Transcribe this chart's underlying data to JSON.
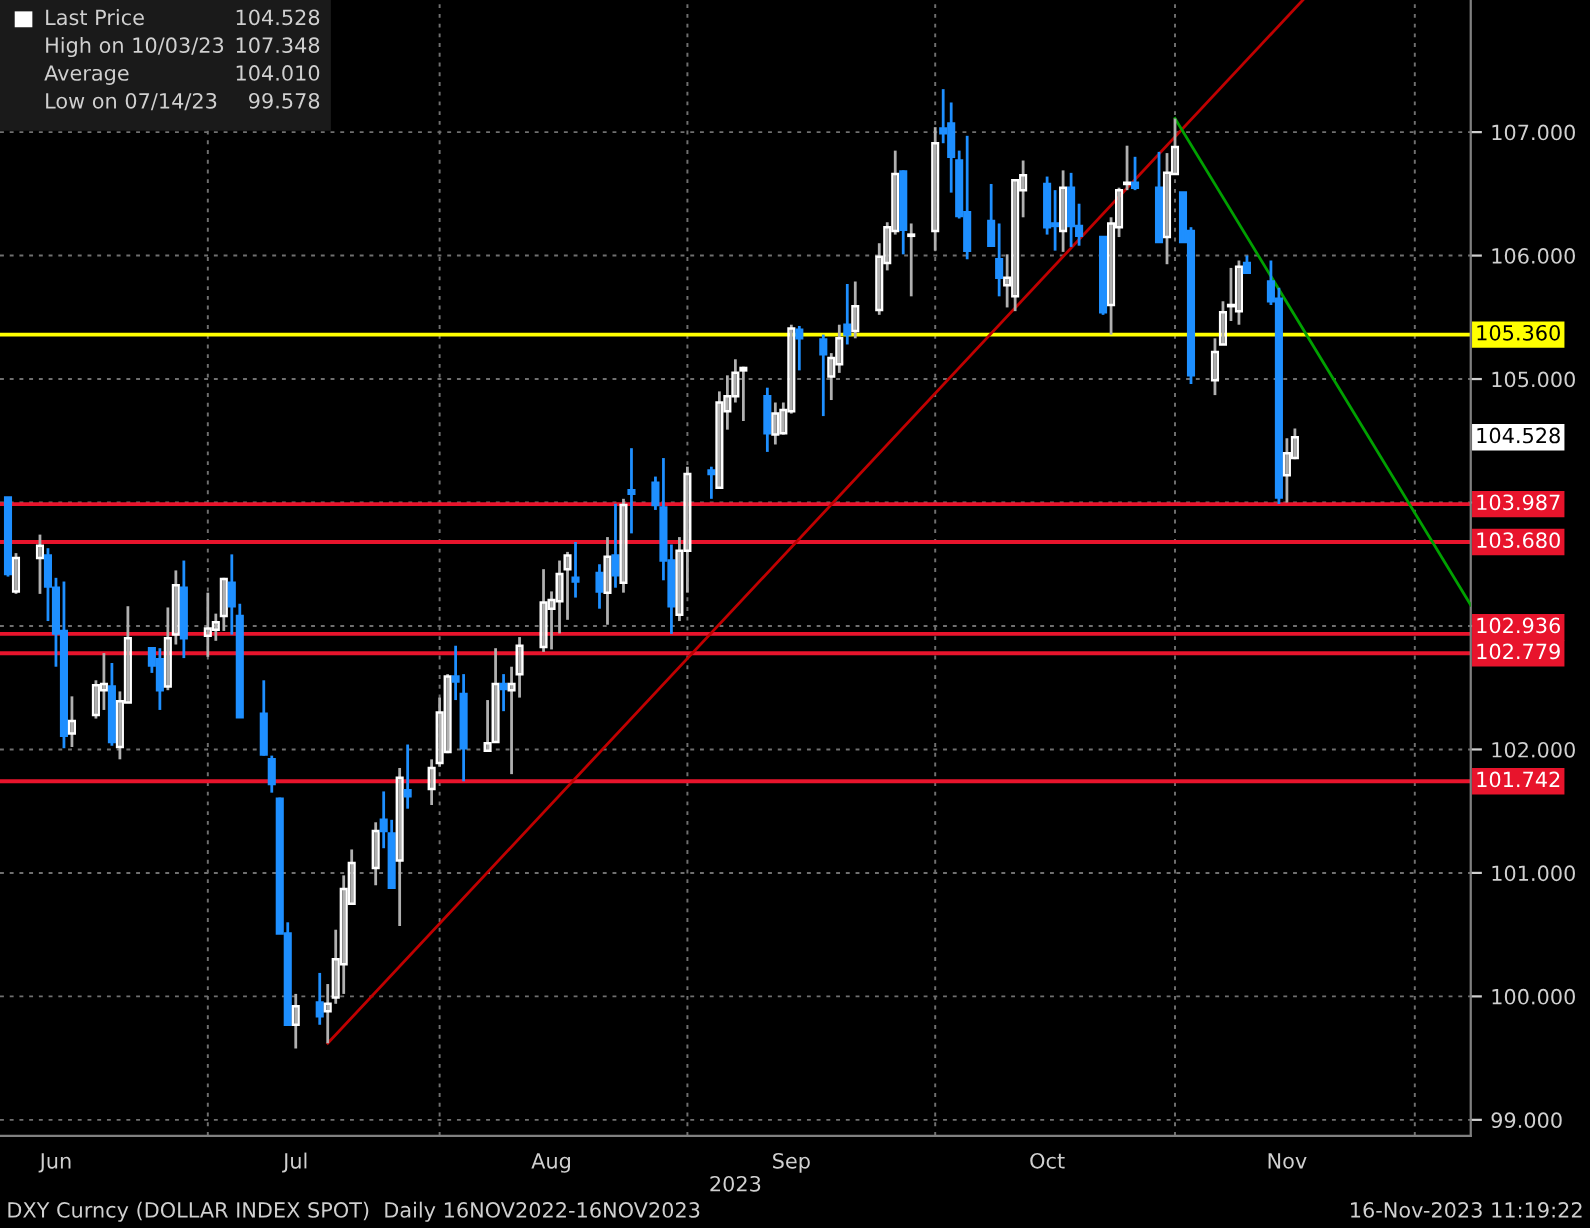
{
  "chart_data": {
    "type": "candlestick",
    "x": [
      "2023-06-08",
      "2023-06-09",
      "2023-06-12",
      "2023-06-13",
      "2023-06-14",
      "2023-06-15",
      "2023-06-16",
      "2023-06-19",
      "2023-06-20",
      "2023-06-21",
      "2023-06-22",
      "2023-06-23",
      "2023-06-26",
      "2023-06-27",
      "2023-06-28",
      "2023-06-29",
      "2023-06-30",
      "2023-07-03",
      "2023-07-04",
      "2023-07-05",
      "2023-07-06",
      "2023-07-07",
      "2023-07-10",
      "2023-07-11",
      "2023-07-12",
      "2023-07-13",
      "2023-07-14",
      "2023-07-17",
      "2023-07-18",
      "2023-07-19",
      "2023-07-20",
      "2023-07-21",
      "2023-07-24",
      "2023-07-25",
      "2023-07-26",
      "2023-07-27",
      "2023-07-28",
      "2023-07-31",
      "2023-08-01",
      "2023-08-02",
      "2023-08-03",
      "2023-08-04",
      "2023-08-07",
      "2023-08-08",
      "2023-08-09",
      "2023-08-10",
      "2023-08-11",
      "2023-08-14",
      "2023-08-15",
      "2023-08-16",
      "2023-08-17",
      "2023-08-18",
      "2023-08-21",
      "2023-08-22",
      "2023-08-23",
      "2023-08-24",
      "2023-08-25",
      "2023-08-28",
      "2023-08-29",
      "2023-08-30",
      "2023-08-31",
      "2023-09-01",
      "2023-09-04",
      "2023-09-05",
      "2023-09-06",
      "2023-09-07",
      "2023-09-08",
      "2023-09-11",
      "2023-09-12",
      "2023-09-13",
      "2023-09-14",
      "2023-09-15",
      "2023-09-18",
      "2023-09-19",
      "2023-09-20",
      "2023-09-21",
      "2023-09-22",
      "2023-09-25",
      "2023-09-26",
      "2023-09-27",
      "2023-09-28",
      "2023-09-29",
      "2023-10-02",
      "2023-10-03",
      "2023-10-04",
      "2023-10-05",
      "2023-10-06",
      "2023-10-09",
      "2023-10-10",
      "2023-10-11",
      "2023-10-12",
      "2023-10-13",
      "2023-10-16",
      "2023-10-17",
      "2023-10-18",
      "2023-10-19",
      "2023-10-20",
      "2023-10-23",
      "2023-10-24",
      "2023-10-25",
      "2023-10-26",
      "2023-10-27",
      "2023-10-30",
      "2023-10-31",
      "2023-11-01",
      "2023-11-02",
      "2023-11-03",
      "2023-11-06",
      "2023-11-07",
      "2023-11-08",
      "2023-11-09",
      "2023-11-10",
      "2023-11-13",
      "2023-11-14",
      "2023-11-15",
      "2023-11-16"
    ],
    "ohlc": [
      [
        104.04,
        104.04,
        103.4,
        103.42
      ],
      [
        103.28,
        103.59,
        103.26,
        103.55
      ],
      [
        103.55,
        103.74,
        103.26,
        103.65
      ],
      [
        103.57,
        103.63,
        103.04,
        103.32
      ],
      [
        103.31,
        103.39,
        102.67,
        102.94
      ],
      [
        102.96,
        103.36,
        102.01,
        102.11
      ],
      [
        102.13,
        102.43,
        102.02,
        102.23
      ],
      [
        102.28,
        102.56,
        102.25,
        102.52
      ],
      [
        102.48,
        102.78,
        102.32,
        102.53
      ],
      [
        102.51,
        102.7,
        102.03,
        102.06
      ],
      [
        102.02,
        102.47,
        101.92,
        102.39
      ],
      [
        102.38,
        103.16,
        102.38,
        102.9
      ],
      [
        102.82,
        102.82,
        102.62,
        102.68
      ],
      [
        102.73,
        102.82,
        102.32,
        102.48
      ],
      [
        102.51,
        103.15,
        102.48,
        102.9
      ],
      [
        102.93,
        103.45,
        102.85,
        103.33
      ],
      [
        103.31,
        103.53,
        102.74,
        102.9
      ],
      [
        102.92,
        103.27,
        102.75,
        102.98
      ],
      [
        102.97,
        103.1,
        102.88,
        103.03
      ],
      [
        103.08,
        103.39,
        102.96,
        103.38
      ],
      [
        103.35,
        103.58,
        102.93,
        103.16
      ],
      [
        103.08,
        103.18,
        102.26,
        102.26
      ],
      [
        102.29,
        102.56,
        101.95,
        101.96
      ],
      [
        101.92,
        101.95,
        101.65,
        101.72
      ],
      [
        101.6,
        101.61,
        100.51,
        100.51
      ],
      [
        100.51,
        100.6,
        99.77,
        99.77
      ],
      [
        99.77,
        100.02,
        99.578,
        99.92
      ],
      [
        99.95,
        100.19,
        99.77,
        99.84
      ],
      [
        99.88,
        100.1,
        99.62,
        99.94
      ],
      [
        99.99,
        100.54,
        99.94,
        100.3
      ],
      [
        100.26,
        100.98,
        100.02,
        100.87
      ],
      [
        100.75,
        101.19,
        100.75,
        101.08
      ],
      [
        101.04,
        101.41,
        100.9,
        101.34
      ],
      [
        101.43,
        101.66,
        101.2,
        101.34
      ],
      [
        101.32,
        101.43,
        100.87,
        100.88
      ],
      [
        101.1,
        101.85,
        100.57,
        101.77
      ],
      [
        101.67,
        102.04,
        101.52,
        101.62
      ],
      [
        101.68,
        101.92,
        101.55,
        101.85
      ],
      [
        101.89,
        102.42,
        101.86,
        102.3
      ],
      [
        101.98,
        102.61,
        101.97,
        102.59
      ],
      [
        102.59,
        102.84,
        102.4,
        102.55
      ],
      [
        102.45,
        102.61,
        101.742,
        102.01
      ],
      [
        101.99,
        102.4,
        101.99,
        102.05
      ],
      [
        102.06,
        102.82,
        102.06,
        102.53
      ],
      [
        102.53,
        102.61,
        102.31,
        102.49
      ],
      [
        102.48,
        102.67,
        101.8,
        102.53
      ],
      [
        102.61,
        102.91,
        102.42,
        102.84
      ],
      [
        102.83,
        103.46,
        102.79,
        103.19
      ],
      [
        103.14,
        103.28,
        102.81,
        103.21
      ],
      [
        103.2,
        103.53,
        102.94,
        103.42
      ],
      [
        103.46,
        103.6,
        103.05,
        103.57
      ],
      [
        103.39,
        103.68,
        103.23,
        103.36
      ],
      [
        103.43,
        103.5,
        103.14,
        103.28
      ],
      [
        103.27,
        103.72,
        103.01,
        103.56
      ],
      [
        103.57,
        103.99,
        103.31,
        103.41
      ],
      [
        103.35,
        104.03,
        103.27,
        103.98
      ],
      [
        104.1,
        104.44,
        103.75,
        104.07
      ],
      [
        104.16,
        104.21,
        103.94,
        103.98
      ],
      [
        103.96,
        104.36,
        103.37,
        103.53
      ],
      [
        103.53,
        103.66,
        102.936,
        103.16
      ],
      [
        103.09,
        103.72,
        103.04,
        103.61
      ],
      [
        103.61,
        104.29,
        103.27,
        104.23
      ],
      [
        104.26,
        104.29,
        104.03,
        104.23
      ],
      [
        104.12,
        104.9,
        104.12,
        104.81
      ],
      [
        104.74,
        105.03,
        104.59,
        104.86
      ],
      [
        104.86,
        105.16,
        104.81,
        105.05
      ],
      [
        105.07,
        105.1,
        104.66,
        105.09
      ],
      [
        104.86,
        104.93,
        104.41,
        104.56
      ],
      [
        104.55,
        104.81,
        104.47,
        104.72
      ],
      [
        104.56,
        104.81,
        104.55,
        104.75
      ],
      [
        104.74,
        105.44,
        104.72,
        105.41
      ],
      [
        105.4,
        105.43,
        105.07,
        105.33
      ],
      [
        105.32,
        105.36,
        104.7,
        105.2
      ],
      [
        105.02,
        105.21,
        104.83,
        105.17
      ],
      [
        105.12,
        105.44,
        105.05,
        105.33
      ],
      [
        105.44,
        105.77,
        105.28,
        105.36
      ],
      [
        105.39,
        105.79,
        105.33,
        105.59
      ],
      [
        105.56,
        106.1,
        105.52,
        105.99
      ],
      [
        105.94,
        106.27,
        105.88,
        106.23
      ],
      [
        106.2,
        106.85,
        106.17,
        106.66
      ],
      [
        106.68,
        106.69,
        106.01,
        106.21
      ],
      [
        106.16,
        106.26,
        105.67,
        106.17
      ],
      [
        106.2,
        107.04,
        106.04,
        106.91
      ],
      [
        107.03,
        107.348,
        106.91,
        106.99
      ],
      [
        107.07,
        107.24,
        106.51,
        106.8
      ],
      [
        106.77,
        106.85,
        106.3,
        106.32
      ],
      [
        106.35,
        106.97,
        105.97,
        106.04
      ],
      [
        106.28,
        106.58,
        106.07,
        106.08
      ],
      [
        105.97,
        106.26,
        105.67,
        105.82
      ],
      [
        105.76,
        106.01,
        105.58,
        105.82
      ],
      [
        105.67,
        106.61,
        105.55,
        106.61
      ],
      [
        106.53,
        106.77,
        106.31,
        106.65
      ],
      [
        106.58,
        106.64,
        106.17,
        106.23
      ],
      [
        106.26,
        106.53,
        106.04,
        106.24
      ],
      [
        106.2,
        106.69,
        106.03,
        106.55
      ],
      [
        106.55,
        106.67,
        106.07,
        106.24
      ],
      [
        106.24,
        106.42,
        106.08,
        106.16
      ],
      [
        106.15,
        106.15,
        105.52,
        105.54
      ],
      [
        105.6,
        106.31,
        105.36,
        106.26
      ],
      [
        106.23,
        106.55,
        106.15,
        106.53
      ],
      [
        106.58,
        106.89,
        106.53,
        106.59
      ],
      [
        106.59,
        106.8,
        106.53,
        106.55
      ],
      [
        106.55,
        106.84,
        106.11,
        106.11
      ],
      [
        106.15,
        106.83,
        105.93,
        106.67
      ],
      [
        106.66,
        107.11,
        106.66,
        106.88
      ],
      [
        106.51,
        106.51,
        106.11,
        106.11
      ],
      [
        106.2,
        106.23,
        104.96,
        105.03
      ],
      [
        104.99,
        105.33,
        104.87,
        105.22
      ],
      [
        105.28,
        105.63,
        105.28,
        105.54
      ],
      [
        105.59,
        105.9,
        105.47,
        105.6
      ],
      [
        105.55,
        105.96,
        105.44,
        105.91
      ],
      [
        105.94,
        106.0,
        105.86,
        105.86
      ],
      [
        105.79,
        105.96,
        105.6,
        105.63
      ],
      [
        105.65,
        105.74,
        103.987,
        104.04
      ],
      [
        104.22,
        104.52,
        104.0,
        104.4
      ],
      [
        104.36,
        104.6,
        104.35,
        104.528
      ]
    ],
    "colors": [
      "#1e8fff",
      "#ffffff",
      "#ffffff",
      "#1e8fff",
      "#1e8fff",
      "#1e8fff",
      "#ffffff",
      "#ffffff",
      "#ffffff",
      "#1e8fff",
      "#ffffff",
      "#ffffff",
      "#1e8fff",
      "#1e8fff",
      "#ffffff",
      "#ffffff",
      "#1e8fff",
      "#ffffff",
      "#ffffff",
      "#ffffff",
      "#1e8fff",
      "#1e8fff",
      "#1e8fff",
      "#1e8fff",
      "#1e8fff",
      "#1e8fff",
      "#ffffff",
      "#1e8fff",
      "#ffffff",
      "#ffffff",
      "#ffffff",
      "#ffffff",
      "#ffffff",
      "#1e8fff",
      "#1e8fff",
      "#ffffff",
      "#1e8fff",
      "#ffffff",
      "#ffffff",
      "#ffffff",
      "#1e8fff",
      "#1e8fff",
      "#ffffff",
      "#ffffff",
      "#1e8fff",
      "#ffffff",
      "#ffffff",
      "#ffffff",
      "#ffffff",
      "#ffffff",
      "#ffffff",
      "#1e8fff",
      "#1e8fff",
      "#ffffff",
      "#1e8fff",
      "#ffffff",
      "#1e8fff",
      "#1e8fff",
      "#1e8fff",
      "#1e8fff",
      "#ffffff",
      "#ffffff",
      "#1e8fff",
      "#ffffff",
      "#ffffff",
      "#ffffff",
      "#ffffff",
      "#1e8fff",
      "#ffffff",
      "#ffffff",
      "#ffffff",
      "#1e8fff",
      "#1e8fff",
      "#ffffff",
      "#ffffff",
      "#1e8fff",
      "#ffffff",
      "#ffffff",
      "#ffffff",
      "#ffffff",
      "#1e8fff",
      "#ffffff",
      "#ffffff",
      "#1e8fff",
      "#1e8fff",
      "#1e8fff",
      "#1e8fff",
      "#1e8fff",
      "#1e8fff",
      "#ffffff",
      "#ffffff",
      "#ffffff",
      "#1e8fff",
      "#1e8fff",
      "#ffffff",
      "#1e8fff",
      "#1e8fff",
      "#1e8fff",
      "#ffffff",
      "#ffffff",
      "#ffffff",
      "#1e8fff",
      "#1e8fff",
      "#ffffff",
      "#ffffff",
      "#1e8fff",
      "#1e8fff",
      "#ffffff",
      "#ffffff",
      "#ffffff",
      "#ffffff",
      "#1e8fff",
      "#1e8fff",
      "#1e8fff",
      "#ffffff",
      "#ffffff"
    ],
    "series": [
      {
        "type": "line",
        "color": "#c00000",
        "x": [
          "2023-07-18",
          "2023-11-17"
        ],
        "values": [
          99.62,
          108.07
        ]
      },
      {
        "type": "line",
        "color": "#00a000",
        "x": [
          "2023-11-01",
          "2023-12-08"
        ],
        "values": [
          107.11,
          103.17
        ]
      }
    ],
    "xlim": [
      "2023-06-07",
      "2023-12-08"
    ],
    "xticks": [
      {
        "value": "2023-06-14",
        "label": "Jun"
      },
      {
        "value": "2023-07-03",
        "label": null
      },
      {
        "value": "2023-07-14",
        "label": "Jul"
      },
      {
        "value": "2023-08-01",
        "label": null
      },
      {
        "value": "2023-08-15",
        "label": "Aug"
      },
      {
        "value": "2023-09-01",
        "label": null
      },
      {
        "value": "2023-09-14",
        "label": "Sep"
      },
      {
        "value": "2023-10-02",
        "label": null
      },
      {
        "value": "2023-10-16",
        "label": "Oct"
      },
      {
        "value": "2023-11-01",
        "label": null
      },
      {
        "value": "2023-11-15",
        "label": "Nov"
      },
      {
        "value": "2023-12-01",
        "label": null
      }
    ],
    "xlabel": "2023",
    "ylim": [
      98.87,
      108.07
    ],
    "yticks": [
      {
        "value": 99,
        "label": "99.000"
      },
      {
        "value": 100,
        "label": "100.000"
      },
      {
        "value": 101,
        "label": "101.000"
      },
      {
        "value": 102,
        "label": "102.000"
      },
      {
        "value": 103,
        "label": null
      },
      {
        "value": 104,
        "label": null
      },
      {
        "value": 105,
        "label": "105.000"
      },
      {
        "value": 106,
        "label": "106.000"
      },
      {
        "value": 107,
        "label": "107.000"
      }
    ],
    "grid": true,
    "ref_lines": [
      {
        "axis": "y",
        "value": 105.36,
        "label": "105.360",
        "color": "#ffff00"
      },
      {
        "axis": "y",
        "value": 103.987,
        "label": "103.987",
        "color": "#e8142c"
      },
      {
        "axis": "y",
        "value": 103.68,
        "label": "103.680",
        "color": "#e8142c"
      },
      {
        "axis": "y",
        "value": 102.936,
        "label": "102.936",
        "color": "#e8142c"
      },
      {
        "axis": "y",
        "value": 102.779,
        "label": "102.779",
        "color": "#e8142c"
      },
      {
        "axis": "y",
        "value": 101.742,
        "label": "101.742",
        "color": "#e8142c"
      }
    ],
    "annotations": [
      "Last Price",
      "104.528",
      "High on 10/03/23",
      "107.348",
      "Average",
      "104.010",
      "Low on 07/14/23",
      "99.578",
      "DXY Curncy (DOLLAR INDEX SPOT)  Daily 16NOV2022-16NOV2023",
      "16-Nov-2023 11:19:22",
      "104.528"
    ]
  }
}
